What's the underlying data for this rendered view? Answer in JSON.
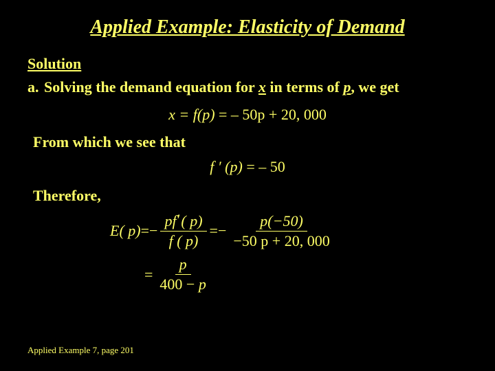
{
  "colors": {
    "background": "#000000",
    "text": "#ffff66"
  },
  "title": "Applied Example: Elasticity of Demand",
  "solution_label": "Solution",
  "line_a_prefix": "a.",
  "line_a_part1": "Solving the demand equation for ",
  "line_a_xvar": "x",
  "line_a_part2": " in terms of ",
  "line_a_pvar": "p",
  "line_a_part3": ", we get",
  "eq1_lhs": "x = f(p)",
  "eq1_rhs": " = – 50p + 20, 000",
  "from_line": "From which we see that",
  "fprime_lhs": "f ′ (p)",
  "fprime_rhs": " = – 50",
  "therefore": "Therefore,",
  "eqE_lhs": "E( p)",
  "eq_equals": " = ",
  "minus": "−",
  "frac1_num_pf": "pf",
  "frac1_num_p": "( p)",
  "frac1_den": "f ( p)",
  "frac2_num": "p(−50)",
  "frac2_den": "−50 p + 20, 000",
  "frac3_num": "p",
  "frac3_den": "400 − p",
  "footer": "Applied Example 7, page 201"
}
